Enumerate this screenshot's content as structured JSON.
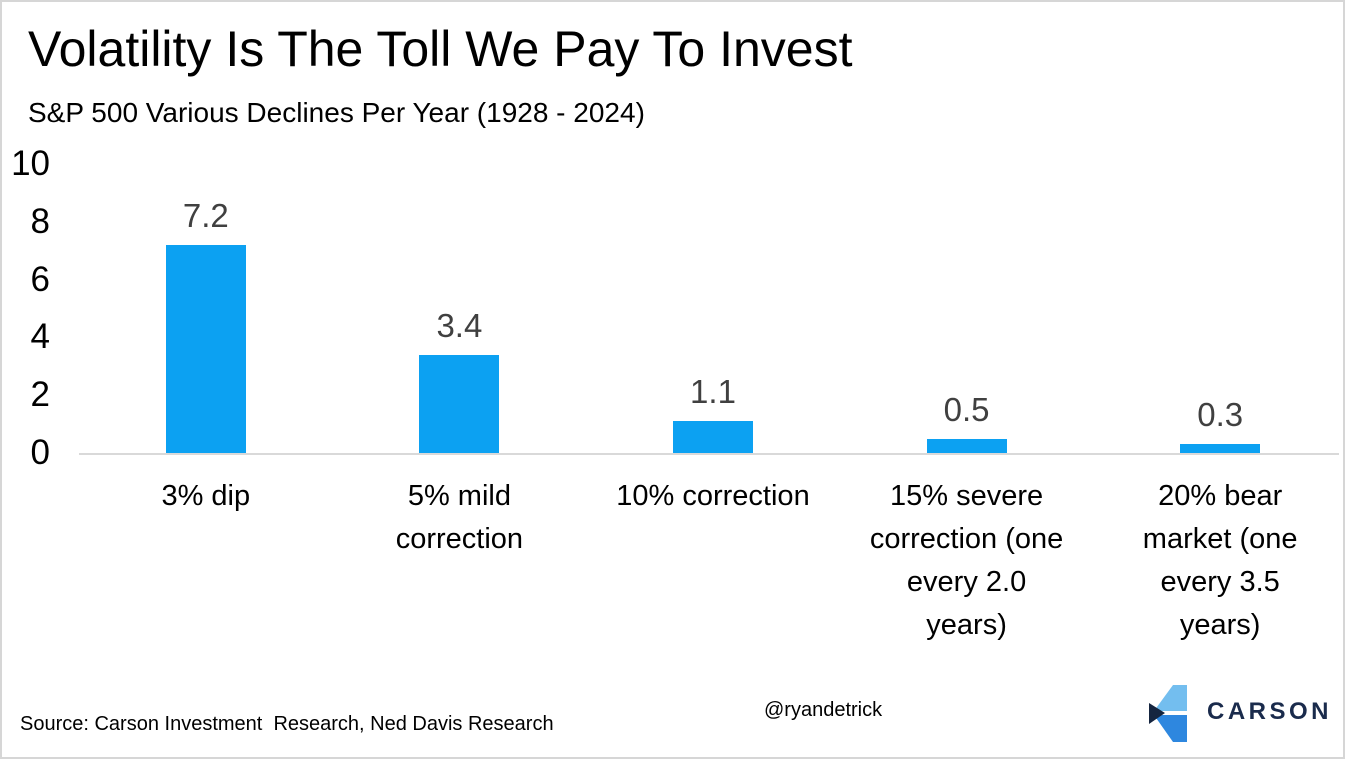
{
  "chart_data": {
    "type": "bar",
    "title": "Volatility Is The Toll We Pay To Invest",
    "subtitle": "S&P 500 Various Declines Per Year (1928 - 2024)",
    "categories": [
      "3% dip",
      "5% mild correction",
      "10% correction",
      "15% severe correction (one every 2.0 years)",
      "20% bear market (one every 3.5 years)"
    ],
    "values": [
      7.2,
      3.4,
      1.1,
      0.5,
      0.3
    ],
    "data_labels": [
      "7.2",
      "3.4",
      "1.1",
      "0.5",
      "0.3"
    ],
    "xlabel": "",
    "ylabel": "",
    "ylim": [
      0,
      10
    ],
    "yticks": [
      10,
      8,
      6,
      4,
      2,
      0
    ],
    "grid": false,
    "legend": false,
    "bar_color": "#0ca1f2",
    "value_label_color": "#404040",
    "axis_line_color": "#d9d9d9"
  },
  "footer": {
    "source": "Source: Carson Investment  Research, Ned Davis Research",
    "handle": "@ryandetrick",
    "logo": {
      "brand": "CARSON",
      "mark_colors": {
        "light_blue": "#73beef",
        "mid_blue": "#2e87df",
        "dark_navy": "#152540"
      },
      "text_color": "#1a2b4c"
    }
  }
}
